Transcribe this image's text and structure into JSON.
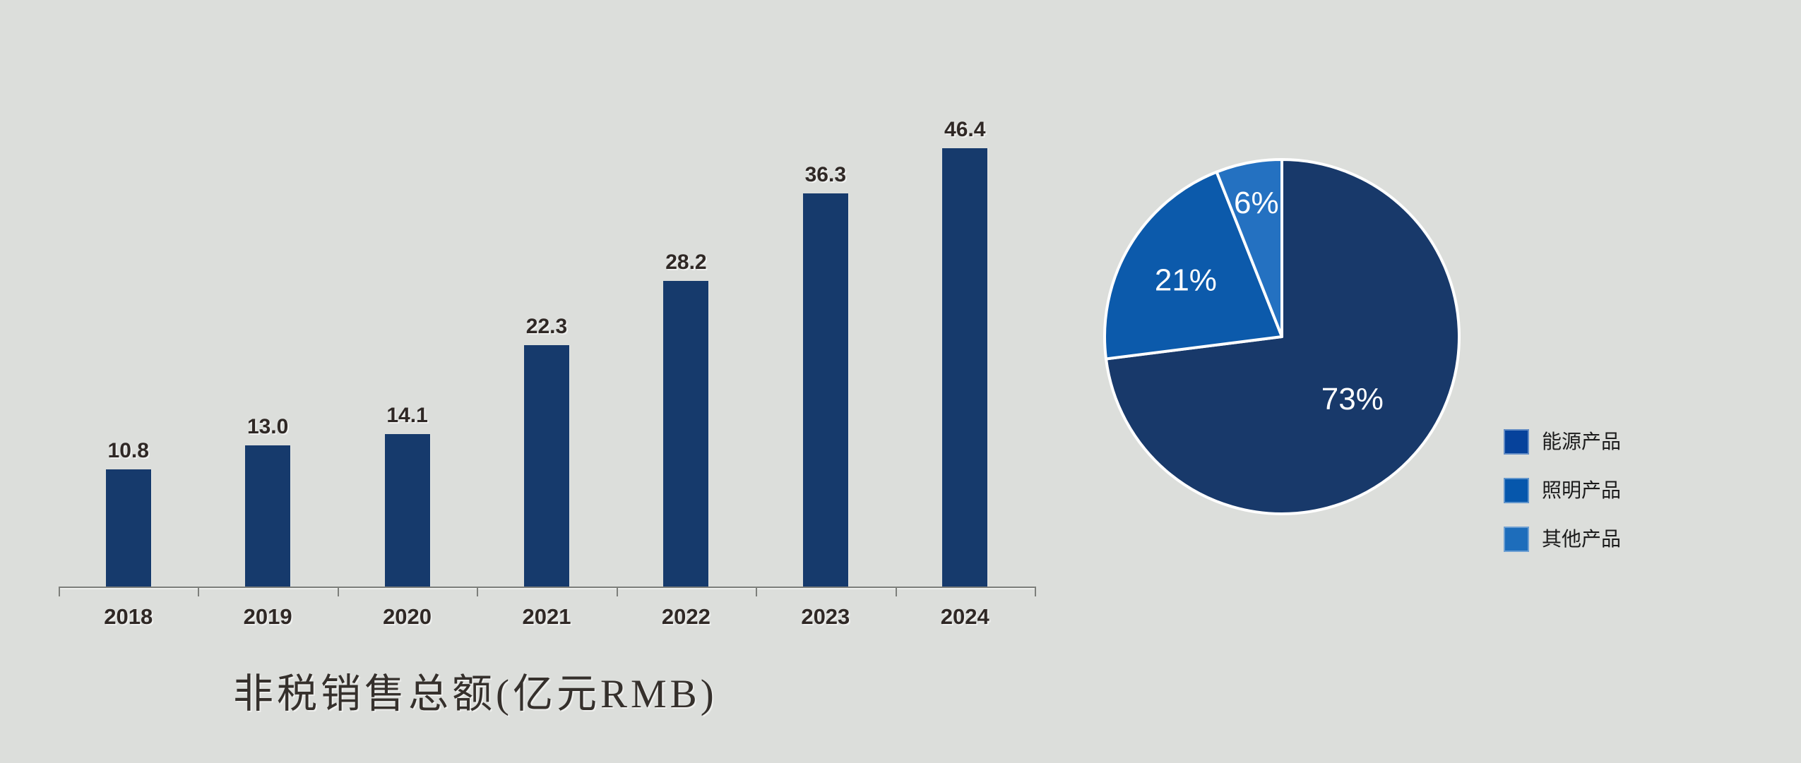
{
  "page": {
    "background_color": "#dcdedb"
  },
  "chart_data": [
    {
      "type": "bar",
      "title": "非税销售总额(亿元RMB)",
      "categories": [
        "2018",
        "2019",
        "2020",
        "2021",
        "2022",
        "2023",
        "2024"
      ],
      "values": [
        10.8,
        13.0,
        14.1,
        22.3,
        28.2,
        36.3,
        46.4
      ],
      "value_labels": [
        "10.8",
        "13.0",
        "14.1",
        "22.3",
        "28.2",
        "36.3",
        "46.4"
      ],
      "bar_color": "#163a6c",
      "label_color": "#2f2825",
      "axis_color": "#7d7f7b",
      "ylim": [
        0,
        46.4
      ],
      "grid": false,
      "legend_position": "none"
    },
    {
      "type": "pie",
      "start_angle_deg": 0,
      "direction": "clockwise",
      "slices": [
        {
          "label": "能源产品",
          "value_pct": 73,
          "display": "73%",
          "color": "#18396a",
          "label_r": 0.53
        },
        {
          "label": "照明产品",
          "value_pct": 21,
          "display": "21%",
          "color": "#0c5aab",
          "label_r": 0.63
        },
        {
          "label": "其他产品",
          "value_pct": 6,
          "display": "6%",
          "color": "#2471c1",
          "label_r": 0.77
        }
      ],
      "slice_border_color": "#ffffff",
      "label_text_color": "#ffffff",
      "legend_position": "right",
      "legend": [
        {
          "label": "能源产品",
          "swatch_color": "#06429b"
        },
        {
          "label": "照明产品",
          "swatch_color": "#0657ac"
        },
        {
          "label": "其他产品",
          "swatch_color": "#1d6dbb"
        }
      ]
    }
  ]
}
